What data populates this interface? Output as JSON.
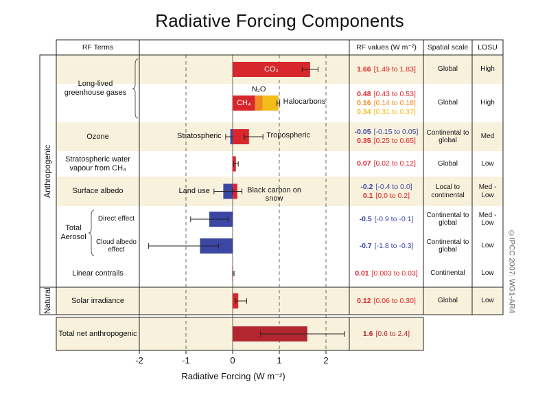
{
  "chart_data": {
    "type": "bar",
    "title": "Radiative Forcing Components",
    "xlabel": "Radiative Forcing  (W m⁻²)",
    "xlim": [
      -2,
      2.5
    ],
    "xticks": [
      -2,
      -1,
      0,
      1,
      2
    ],
    "headers": {
      "terms": "RF Terms",
      "values": "RF values (W m⁻²)",
      "scale": "Spatial scale",
      "losu": "LOSU"
    },
    "credit": "©IPCC 2007: WG1-AR4",
    "sections": [
      {
        "label": "Anthropogenic",
        "rows": [
          {
            "term": "Long-lived greenhouse gases",
            "rows": [
              {
                "scale": "Global",
                "losu": "High",
                "bars": [
                  {
                    "name": "CO₂",
                    "value": 1.66,
                    "range": [
                      1.49,
                      1.83
                    ],
                    "range_label": "[1.49 to 1.83]",
                    "color": "#d7262c"
                  }
                ]
              },
              {
                "scale": "Global",
                "losu": "High",
                "stacked": true,
                "bars": [
                  {
                    "name": "CH₄",
                    "value": 0.48,
                    "range": [
                      0.43,
                      0.53
                    ],
                    "range_label": "[0.43 to 0.53]",
                    "color": "#d7262c"
                  },
                  {
                    "name": "N₂O",
                    "value": 0.16,
                    "range": [
                      0.14,
                      0.18
                    ],
                    "range_label": "[0.14 to 0.18]",
                    "color": "#f08a24"
                  },
                  {
                    "name": "Halocarbons",
                    "value": 0.34,
                    "range": [
                      0.31,
                      0.37
                    ],
                    "range_label": "[0.31 to 0.37]",
                    "color": "#f2bd1a"
                  }
                ]
              }
            ]
          },
          {
            "term": "Ozone",
            "scale": "Continental to global",
            "losu": "Med",
            "bars": [
              {
                "name": "Stratospheric",
                "value": -0.05,
                "range": [
                  -0.15,
                  0.05
                ],
                "range_label": "[-0.15 to 0.05]",
                "color": "#3b47a3"
              },
              {
                "name": "Tropospheric",
                "value": 0.35,
                "range": [
                  0.25,
                  0.65
                ],
                "range_label": "[0.25 to 0.65]",
                "color": "#d7262c"
              }
            ]
          },
          {
            "term": "Stratospheric water vapour from CH₄",
            "scale": "Global",
            "losu": "Low",
            "bars": [
              {
                "value": 0.07,
                "range": [
                  0.02,
                  0.12
                ],
                "range_label": "[0.02 to 0.12]",
                "color": "#d7262c"
              }
            ]
          },
          {
            "term": "Surface albedo",
            "scale": "Local to continental",
            "losu": "Med - Low",
            "bars": [
              {
                "name": "Land use",
                "value": -0.2,
                "range": [
                  -0.4,
                  0.0
                ],
                "range_label": "[-0.4 to 0.0]",
                "color": "#3b47a3"
              },
              {
                "name": "Black carbon on snow",
                "value": 0.1,
                "range": [
                  0.0,
                  0.2
                ],
                "range_label": "[0.0 to 0.2]",
                "color": "#d7262c"
              }
            ]
          },
          {
            "term": "Total Aerosol",
            "rows": [
              {
                "term": "Direct effect",
                "scale": "Continental to global",
                "losu": "Med - Low",
                "bars": [
                  {
                    "value": -0.5,
                    "range": [
                      -0.9,
                      -0.1
                    ],
                    "range_label": "[-0.9 to -0.1]",
                    "color": "#3b47a3"
                  }
                ]
              },
              {
                "term": "Cloud albedo effect",
                "scale": "Continental to global",
                "losu": "Low",
                "bars": [
                  {
                    "value": -0.7,
                    "range": [
                      -1.8,
                      -0.3
                    ],
                    "range_label": "[-1.8 to -0.3]",
                    "color": "#3b47a3"
                  }
                ]
              }
            ]
          },
          {
            "term": "Linear contrails",
            "scale": "Continental",
            "losu": "Low",
            "bars": [
              {
                "value": 0.01,
                "range": [
                  0.003,
                  0.03
                ],
                "range_label": "[0.003 to 0.03]",
                "color": "#d7262c"
              }
            ]
          }
        ]
      },
      {
        "label": "Natural",
        "rows": [
          {
            "term": "Solar irradiance",
            "scale": "Global",
            "losu": "Low",
            "bars": [
              {
                "value": 0.12,
                "range": [
                  0.06,
                  0.3
                ],
                "range_label": "[0.06 to 0.30]",
                "color": "#d7262c"
              }
            ]
          }
        ]
      }
    ],
    "total": {
      "term": "Total net anthropogenic",
      "bars": [
        {
          "value": 1.6,
          "range": [
            0.6,
            2.4
          ],
          "range_label": "[0.6 to 2.4]",
          "color": "#b3262f"
        }
      ]
    }
  }
}
